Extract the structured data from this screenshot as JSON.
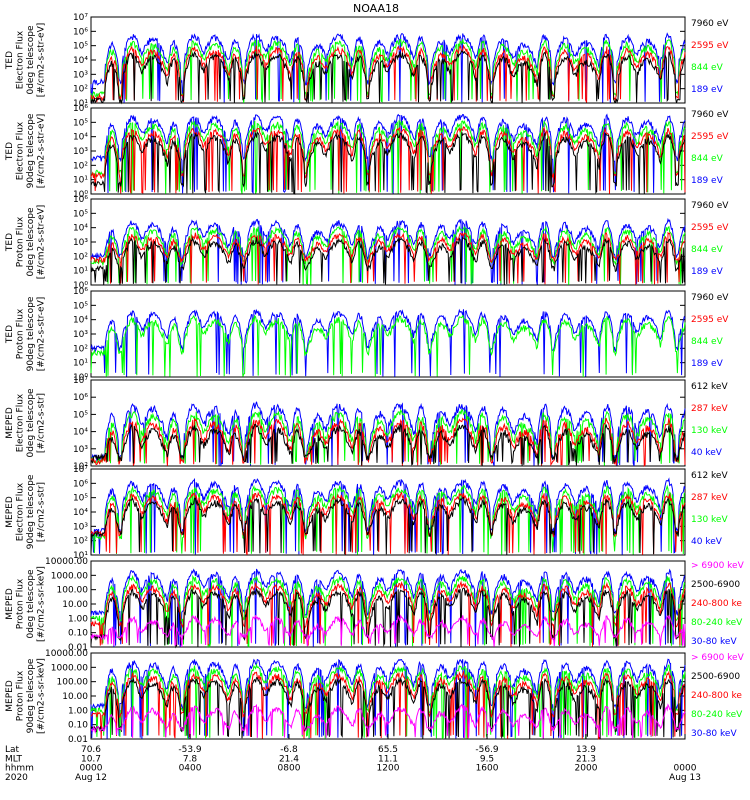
{
  "title": "NOAA18",
  "colors": {
    "blue": "#0000ff",
    "red": "#ff0000",
    "green": "#00ff00",
    "black": "#000000",
    "magenta": "#ff00ff"
  },
  "chart_data": [
    {
      "type": "line",
      "panel": "ted-electron-0deg",
      "ylabel": [
        "TED",
        "Electron Flux",
        "0deg telescope",
        "[#/cm2-s-str-eV]"
      ],
      "ylim": [
        10,
        10000000
      ],
      "yscale": "log",
      "yticks": [
        "10¹",
        "10²",
        "10³",
        "10⁴",
        "10⁵",
        "10⁶",
        "10⁷"
      ],
      "series": [
        {
          "name": "7960 eV",
          "color": "black"
        },
        {
          "name": "2595 eV",
          "color": "red"
        },
        {
          "name": "844 eV",
          "color": "green"
        },
        {
          "name": "189 eV",
          "color": "blue"
        }
      ],
      "profile": {
        "base_blue": 300,
        "base_red": 25,
        "base_green": 40,
        "base_black": 15,
        "peak": 600000,
        "lo_cut": 10
      }
    },
    {
      "type": "line",
      "panel": "ted-electron-90deg",
      "ylabel": [
        "TED",
        "Electron Flux",
        "90deg telescope",
        "[#/cm2-s-str-eV]"
      ],
      "ylim": [
        1,
        1000000
      ],
      "yscale": "log",
      "yticks": [
        "10⁰",
        "10¹",
        "10²",
        "10³",
        "10⁴",
        "10⁵",
        "10⁶"
      ],
      "series": [
        {
          "name": "7960 eV",
          "color": "black"
        },
        {
          "name": "2595 eV",
          "color": "red"
        },
        {
          "name": "844 eV",
          "color": "green"
        },
        {
          "name": "189 eV",
          "color": "blue"
        }
      ],
      "profile": {
        "base_blue": 300,
        "base_red": 20,
        "base_green": 30,
        "base_black": 5,
        "peak": 300000,
        "lo_cut": 1
      }
    },
    {
      "type": "line",
      "panel": "ted-proton-0deg",
      "ylabel": [
        "TED",
        "Proton Flux",
        "0deg telescope",
        "[#/cm2-s-str-eV]"
      ],
      "ylim": [
        1,
        1000000
      ],
      "yscale": "log",
      "yticks": [
        "10⁰",
        "10¹",
        "10²",
        "10³",
        "10⁴",
        "10⁵",
        "10⁶"
      ],
      "series": [
        {
          "name": "7960 eV",
          "color": "black"
        },
        {
          "name": "2595 eV",
          "color": "red"
        },
        {
          "name": "844 eV",
          "color": "green"
        },
        {
          "name": "189 eV",
          "color": "blue"
        }
      ],
      "profile": {
        "base_blue": 100,
        "base_red": 60,
        "base_green": 40,
        "base_black": 15,
        "peak": 30000,
        "lo_cut": 1
      }
    },
    {
      "type": "line",
      "panel": "ted-proton-90deg",
      "ylabel": [
        "TED",
        "Proton Flux",
        "90deg telescope",
        "[#/cm2-s-str-eV]"
      ],
      "ylim": [
        1,
        1000000
      ],
      "yscale": "log",
      "yticks": [
        "10⁰",
        "10¹",
        "10²",
        "10³",
        "10⁴",
        "10⁵",
        "10⁶"
      ],
      "series": [
        {
          "name": "7960 eV",
          "color": "black"
        },
        {
          "name": "2595 eV",
          "color": "red"
        },
        {
          "name": "844 eV",
          "color": "green"
        },
        {
          "name": "189 eV",
          "color": "blue"
        }
      ],
      "profile": {
        "base_blue": 100,
        "base_red": 0,
        "base_green": 50,
        "base_black": 0,
        "peak": 40000,
        "lo_cut": 1
      }
    },
    {
      "type": "line",
      "panel": "meped-electron-0deg",
      "ylabel": [
        "MEPED",
        "Electron Flux",
        "0deg telescope",
        "[#/cm2-s-str]"
      ],
      "ylim": [
        100,
        10000000
      ],
      "yscale": "log",
      "yticks": [
        "10²",
        "10³",
        "10⁴",
        "10⁵",
        "10⁶",
        "10⁷"
      ],
      "series": [
        {
          "name": "612 keV",
          "color": "black"
        },
        {
          "name": "287 keV",
          "color": "red"
        },
        {
          "name": "130 keV",
          "color": "green"
        },
        {
          "name": "40 keV",
          "color": "blue"
        }
      ],
      "profile": {
        "base_blue": 300,
        "base_red": 200,
        "base_green": 250,
        "base_black": 300,
        "peak": 400000,
        "lo_cut": 100
      }
    },
    {
      "type": "line",
      "panel": "meped-electron-90deg",
      "ylabel": [
        "MEPED",
        "Electron Flux",
        "90deg telescope",
        "[#/cm2-s-str]"
      ],
      "ylim": [
        10,
        10000000
      ],
      "yscale": "log",
      "yticks": [
        "10¹",
        "10²",
        "10³",
        "10⁴",
        "10⁵",
        "10⁶",
        "10⁷"
      ],
      "series": [
        {
          "name": "612 keV",
          "color": "black"
        },
        {
          "name": "287 keV",
          "color": "red"
        },
        {
          "name": "130 keV",
          "color": "green"
        },
        {
          "name": "40 keV",
          "color": "blue"
        }
      ],
      "profile": {
        "base_blue": 500,
        "base_red": 300,
        "base_green": 200,
        "base_black": 300,
        "peak": 1500000,
        "lo_cut": 10
      }
    },
    {
      "type": "line",
      "panel": "meped-proton-0deg",
      "ylabel": [
        "MEPED",
        "Proton Flux",
        "0deg telescope",
        "[#/cm2-s-sr-keV]"
      ],
      "ylim": [
        0.01,
        10000
      ],
      "yscale": "log",
      "yticks": [
        "0.01",
        "0.10",
        "1.00",
        "10.00",
        "100.00",
        "1000.00",
        "10000.00"
      ],
      "series": [
        {
          "name": "> 6900 keV",
          "color": "magenta"
        },
        {
          "name": "2500-6900",
          "color": "black"
        },
        {
          "name": "240-800 ke",
          "color": "red"
        },
        {
          "name": "80-240 keV",
          "color": "green"
        },
        {
          "name": "30-80 keV",
          "color": "blue"
        }
      ],
      "profile": {
        "base_blue": 2.5,
        "base_red": 0.4,
        "base_green": 1.0,
        "base_black": 0.05,
        "peak": 2000,
        "lo_cut": 0.01
      }
    },
    {
      "type": "line",
      "panel": "meped-proton-90deg",
      "ylabel": [
        "MEPED",
        "Proton Flux",
        "90deg telescope",
        "[#/cm2-s-sr-keV]"
      ],
      "ylim": [
        0.01,
        10000
      ],
      "yscale": "log",
      "yticks": [
        "0.01",
        "0.10",
        "1.00",
        "10.00",
        "100.00",
        "1000.00",
        "10000.00"
      ],
      "series": [
        {
          "name": "> 6900 keV",
          "color": "magenta"
        },
        {
          "name": "2500-6900",
          "color": "black"
        },
        {
          "name": "240-800 ke",
          "color": "red"
        },
        {
          "name": "80-240 keV",
          "color": "green"
        },
        {
          "name": "30-80 keV",
          "color": "blue"
        }
      ],
      "profile": {
        "base_blue": 2.0,
        "base_red": 0.5,
        "base_green": 1.0,
        "base_black": 0.05,
        "peak": 3000,
        "lo_cut": 0.01
      }
    }
  ],
  "x_axis": {
    "row_labels": [
      "Lat",
      "MLT",
      "hhmm",
      "2020"
    ],
    "ticks": [
      {
        "t": 0.0,
        "lines": [
          "70.6",
          "10.7",
          "0000",
          "Aug 12"
        ]
      },
      {
        "t": 0.1667,
        "lines": [
          "-53.9",
          "7.8",
          "0400",
          ""
        ]
      },
      {
        "t": 0.3333,
        "lines": [
          "-6.8",
          "21.4",
          "0800",
          ""
        ]
      },
      {
        "t": 0.5,
        "lines": [
          "65.5",
          "11.1",
          "1200",
          ""
        ]
      },
      {
        "t": 0.6667,
        "lines": [
          "-56.9",
          "9.5",
          "1600",
          ""
        ]
      },
      {
        "t": 0.8333,
        "lines": [
          "13.9",
          "21.3",
          "2000",
          ""
        ]
      },
      {
        "t": 1.0,
        "lines": [
          "",
          "",
          "0000",
          "Aug 13"
        ]
      }
    ]
  }
}
